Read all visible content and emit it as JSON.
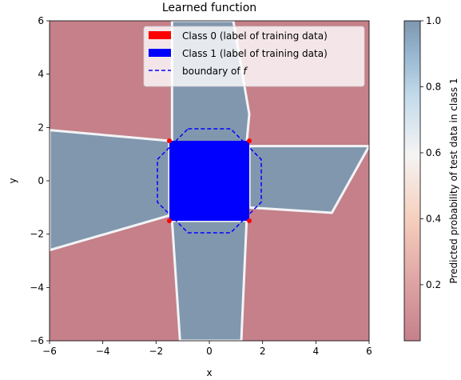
{
  "colors": {
    "class0": "#ff0000",
    "class1": "#0000ff",
    "boundary": "#0000ff",
    "map_low": "#c5808a",
    "map_mid": "#f7f4f3",
    "map_high": "#8197ae"
  },
  "chart_data": {
    "type": "heatmap",
    "title": "Learned function",
    "xlabel": "x",
    "ylabel": "y",
    "xlim": [
      -6,
      6
    ],
    "ylim": [
      -6,
      6
    ],
    "xticks": [
      "−6",
      "−4",
      "−2",
      "0",
      "2",
      "4",
      "6"
    ],
    "yticks": [
      "−6",
      "−4",
      "−2",
      "0",
      "2",
      "4",
      "6"
    ],
    "xtick_values": [
      -6,
      -4,
      -2,
      0,
      2,
      4,
      6
    ],
    "ytick_values": [
      -6,
      -4,
      -2,
      0,
      2,
      4,
      6
    ],
    "legend": {
      "placement": "upper-right",
      "entries": [
        {
          "label": "Class 0 (label of training data)",
          "kind": "patch",
          "color": "#ff0000"
        },
        {
          "label": "Class 1 (label of training data)",
          "kind": "patch",
          "color": "#0000ff"
        },
        {
          "label_prefix": "boundary of ",
          "label_math": "f",
          "kind": "dashed-line",
          "color": "#0000ff"
        }
      ]
    },
    "colorbar": {
      "label": "Predicted probability of test data in class 1",
      "range": [
        0.03,
        1.0
      ],
      "ticks": [
        "0.2",
        "0.4",
        "0.6",
        "0.8",
        "1.0"
      ],
      "tick_values": [
        0.2,
        0.4,
        0.6,
        0.8,
        1.0
      ],
      "colormap": "RdBu (alpha 0.5)"
    },
    "training_data": {
      "class1_region": {
        "x": [
          -1.5,
          1.5
        ],
        "y": [
          -1.5,
          1.5
        ]
      },
      "class0_marked_corners": [
        [
          -1.5,
          1.5
        ],
        [
          1.5,
          1.5
        ],
        [
          -1.5,
          -1.5
        ],
        [
          1.5,
          -1.5
        ]
      ]
    },
    "decision_boundary": {
      "style": "dashed",
      "points": [
        [
          -0.8,
          1.95
        ],
        [
          0.8,
          1.95
        ],
        [
          1.95,
          0.8
        ],
        [
          1.95,
          -0.8
        ],
        [
          0.8,
          -1.95
        ],
        [
          -0.8,
          -1.95
        ],
        [
          -1.95,
          -0.8
        ],
        [
          -1.95,
          0.8
        ]
      ]
    },
    "predicted_class1_regions": [
      {
        "description": "left wedge",
        "points": [
          [
            -6,
            1.9
          ],
          [
            -1.5,
            1.5
          ],
          [
            -1.5,
            -1.3
          ],
          [
            -6,
            -2.6
          ]
        ]
      },
      {
        "description": "vertical band top",
        "points": [
          [
            -1.4,
            6
          ],
          [
            0.9,
            6
          ],
          [
            1.5,
            2.5
          ],
          [
            1.4,
            1.4
          ],
          [
            -1.4,
            1.4
          ]
        ]
      },
      {
        "description": "vertical band bottom",
        "points": [
          [
            -1.4,
            -1.5
          ],
          [
            1.4,
            -1.5
          ],
          [
            1.2,
            -6
          ],
          [
            -1.1,
            -6
          ]
        ]
      },
      {
        "description": "right wedge",
        "points": [
          [
            1.5,
            1.3
          ],
          [
            6,
            1.3
          ],
          [
            4.6,
            -1.2
          ],
          [
            1.5,
            -1.0
          ]
        ]
      }
    ]
  }
}
